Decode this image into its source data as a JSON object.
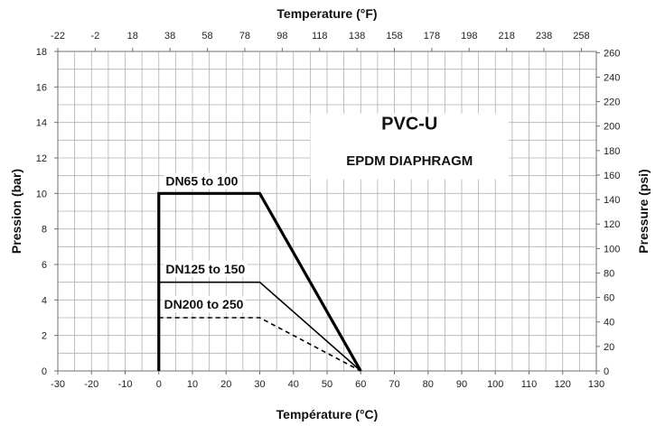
{
  "chart_data": {
    "type": "line",
    "title": "PVC-U",
    "subtitle": "EPDM DIAPHRAGM",
    "xlabel": "Température (°C)",
    "ylabel": "Pression (bar)",
    "x2label": "Temperature (°F)",
    "y2label": "Pressure (psi)",
    "xlim": [
      -30,
      130
    ],
    "ylim": [
      0,
      18
    ],
    "x2lim": [
      -22,
      266
    ],
    "y2lim": [
      0,
      261
    ],
    "xticks": [
      -30,
      -20,
      -10,
      0,
      10,
      20,
      30,
      40,
      50,
      60,
      70,
      80,
      90,
      100,
      110,
      120,
      130
    ],
    "yticks": [
      0,
      2,
      4,
      6,
      8,
      10,
      12,
      14,
      16,
      18
    ],
    "x2ticks": [
      -22,
      -2,
      18,
      38,
      58,
      78,
      98,
      118,
      138,
      158,
      178,
      198,
      218,
      238,
      258
    ],
    "y2ticks": [
      0,
      20,
      40,
      60,
      80,
      100,
      120,
      140,
      160,
      180,
      200,
      220,
      240,
      260
    ],
    "grid": true,
    "series": [
      {
        "name": "DN65 to 100",
        "style": "solid-thick",
        "x": [
          0,
          0,
          30,
          60
        ],
        "y": [
          0,
          10,
          10,
          0
        ]
      },
      {
        "name": "DN125 to 150",
        "style": "solid",
        "x": [
          0,
          30,
          60
        ],
        "y": [
          5,
          5,
          0
        ]
      },
      {
        "name": "DN200 to 250",
        "style": "dashed",
        "x": [
          0,
          30,
          60
        ],
        "y": [
          3,
          3,
          0
        ]
      }
    ],
    "colors": {
      "line": "#000000",
      "grid": "#b0b0b0"
    }
  }
}
